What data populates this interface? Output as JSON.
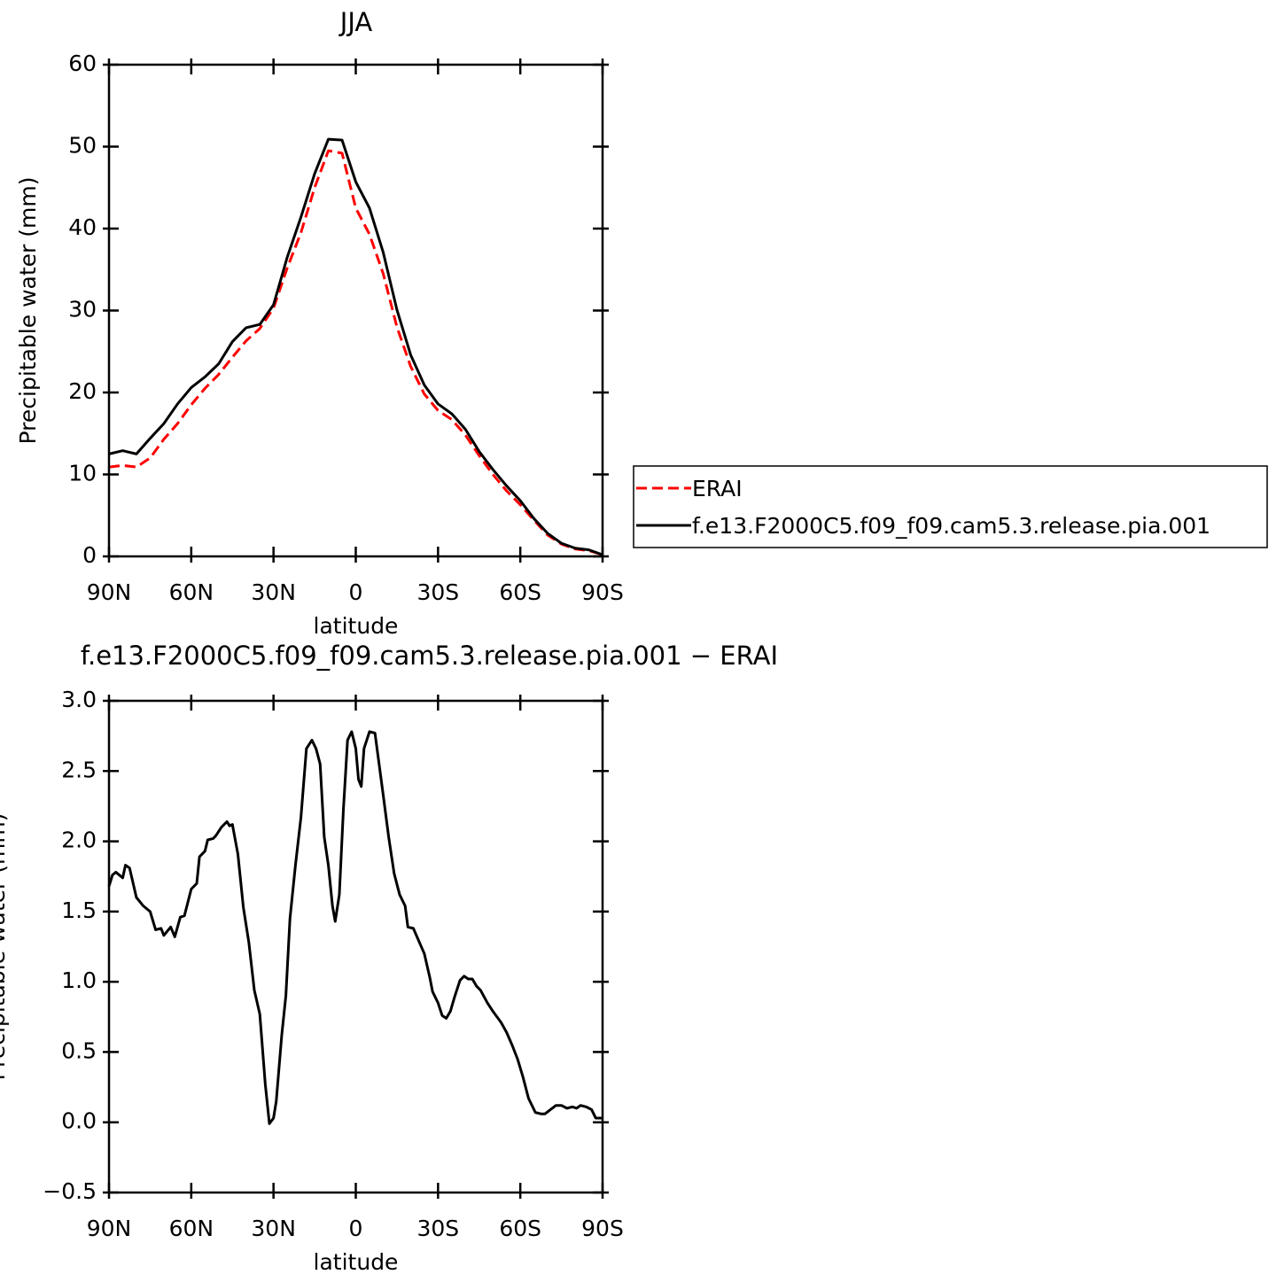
{
  "chart_data": [
    {
      "type": "line",
      "title": "JJA",
      "xlabel": "latitude",
      "ylabel": "Precipitable water (mm)",
      "x": [
        90,
        85,
        80,
        75,
        70,
        65,
        60,
        55,
        50,
        45,
        40,
        35,
        30,
        25,
        20,
        15,
        10,
        5,
        0,
        -5,
        -10,
        -15,
        -20,
        -25,
        -30,
        -35,
        -40,
        -45,
        -50,
        -55,
        -60,
        -65,
        -70,
        -75,
        -80,
        -85,
        -90
      ],
      "series": [
        {
          "name": "ERAI",
          "color": "#ff0000",
          "dash": true,
          "values": [
            10.9,
            11.1,
            10.9,
            12.0,
            14.3,
            16.2,
            18.5,
            20.5,
            22.2,
            24.3,
            26.3,
            27.8,
            30.3,
            35.2,
            39.5,
            45.0,
            49.5,
            49.2,
            42.5,
            39.3,
            34.5,
            28.0,
            23.2,
            19.8,
            17.8,
            16.7,
            14.8,
            12.3,
            10.0,
            8.0,
            6.3,
            4.4,
            2.6,
            1.5,
            0.9,
            0.7,
            0.2
          ]
        },
        {
          "name": "f.e13.F2000C5.f09_f09.cam5.3.release.pia.001",
          "color": "#000000",
          "dash": false,
          "values": [
            12.5,
            12.9,
            12.5,
            14.4,
            16.2,
            18.6,
            20.6,
            21.9,
            23.5,
            26.2,
            27.9,
            28.3,
            30.7,
            36.5,
            41.4,
            46.7,
            50.9,
            50.8,
            45.7,
            42.5,
            37.1,
            30.1,
            24.6,
            20.9,
            18.6,
            17.4,
            15.5,
            12.8,
            10.6,
            8.6,
            6.8,
            4.6,
            2.8,
            1.6,
            1.0,
            0.8,
            0.2
          ]
        }
      ],
      "xlim": [
        90,
        -90
      ],
      "xticks": [
        {
          "value": 90,
          "label": "90N"
        },
        {
          "value": 60,
          "label": "60N"
        },
        {
          "value": 30,
          "label": "30N"
        },
        0,
        {
          "value": -30,
          "label": "30S"
        },
        {
          "value": -60,
          "label": "60S"
        },
        {
          "value": -90,
          "label": "90S"
        }
      ],
      "ylim": [
        0,
        60
      ],
      "yticks": [
        0,
        10,
        20,
        30,
        40,
        50,
        60
      ]
    },
    {
      "type": "line",
      "title": "f.e13.F2000C5.f09_f09.cam5.3.release.pia.001 − ERAI",
      "xlabel": "latitude",
      "ylabel": "Precipitable water (mm)",
      "x": [
        90,
        88.75,
        87.5,
        85,
        84,
        82.5,
        80,
        77.5,
        75,
        73,
        71,
        70,
        67.5,
        66,
        64,
        62.5,
        60,
        58,
        57,
        55,
        54,
        52,
        51,
        49,
        47,
        46,
        45,
        43,
        41,
        39,
        37,
        35,
        33,
        31.5,
        30,
        29,
        27,
        25.5,
        24,
        22,
        20,
        18,
        16,
        14.5,
        13,
        11.5,
        10,
        8.5,
        7.5,
        6,
        4.5,
        3,
        1.5,
        0,
        -1,
        -2,
        -3,
        -5,
        -7,
        -10,
        -12,
        -14,
        -16,
        -18,
        -19,
        -21,
        -23,
        -25,
        -27,
        -28,
        -30,
        -31.5,
        -33,
        -34.5,
        -36,
        -38,
        -39.5,
        -41,
        -42.5,
        -44,
        -45.5,
        -48,
        -50,
        -51.5,
        -53,
        -55,
        -57,
        -59,
        -61,
        -63,
        -65.5,
        -67.5,
        -69,
        -71,
        -73,
        -75,
        -77,
        -79,
        -80.5,
        -82,
        -84,
        -86,
        -87.5,
        -90
      ],
      "values": [
        1.68,
        1.76,
        1.78,
        1.74,
        1.83,
        1.81,
        1.6,
        1.54,
        1.5,
        1.37,
        1.38,
        1.33,
        1.39,
        1.32,
        1.46,
        1.47,
        1.66,
        1.7,
        1.89,
        1.93,
        2.01,
        2.02,
        2.04,
        2.1,
        2.14,
        2.11,
        2.12,
        1.91,
        1.53,
        1.28,
        0.94,
        0.77,
        0.27,
        -0.01,
        0.03,
        0.15,
        0.62,
        0.9,
        1.45,
        1.83,
        2.17,
        2.66,
        2.72,
        2.66,
        2.55,
        2.03,
        1.83,
        1.54,
        1.43,
        1.62,
        2.23,
        2.72,
        2.78,
        2.66,
        2.44,
        2.39,
        2.66,
        2.78,
        2.77,
        2.33,
        2.03,
        1.77,
        1.62,
        1.54,
        1.39,
        1.38,
        1.29,
        1.2,
        1.03,
        0.93,
        0.85,
        0.76,
        0.74,
        0.79,
        0.89,
        1.01,
        1.04,
        1.02,
        1.02,
        0.97,
        0.94,
        0.85,
        0.79,
        0.75,
        0.71,
        0.64,
        0.55,
        0.45,
        0.32,
        0.17,
        0.07,
        0.06,
        0.06,
        0.09,
        0.12,
        0.12,
        0.1,
        0.11,
        0.1,
        0.12,
        0.11,
        0.09,
        0.03,
        0.03
      ],
      "color": "#000000",
      "xlim": [
        90,
        -90
      ],
      "xticks": [
        {
          "value": 90,
          "label": "90N"
        },
        {
          "value": 60,
          "label": "60N"
        },
        {
          "value": 30,
          "label": "30N"
        },
        0,
        {
          "value": -30,
          "label": "30S"
        },
        {
          "value": -60,
          "label": "60S"
        },
        {
          "value": -90,
          "label": "90S"
        }
      ],
      "ylim": [
        -0.5,
        3.0
      ],
      "yticks": [
        {
          "value": -0.5,
          "label": "−0.5"
        },
        {
          "value": 0,
          "label": "0.0"
        },
        0.5,
        {
          "value": 1,
          "label": "1.0"
        },
        1.5,
        {
          "value": 2,
          "label": "2.0"
        },
        2.5,
        {
          "value": 3,
          "label": "3.0"
        }
      ]
    }
  ]
}
